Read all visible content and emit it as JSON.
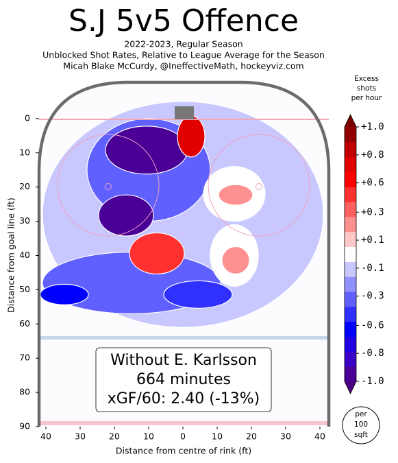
{
  "chart_data": {
    "type": "contour",
    "title": "S.J 5v5 Offence",
    "subtitle": [
      "2022-2023, Regular Season",
      "Unblocked Shot Rates, Relative to League Average for the Season",
      "Micah Blake McCurdy, @IneffectiveMath, hockeyviz.com"
    ],
    "xlabel": "Distance from centre of rink (ft)",
    "ylabel": "Distance from goal line (ft)",
    "xlim": [
      -43,
      43
    ],
    "ylim": [
      -11,
      90
    ],
    "xticks": [
      {
        "value": -40,
        "label": "40"
      },
      {
        "value": -30,
        "label": "30"
      },
      {
        "value": -20,
        "label": "20"
      },
      {
        "value": -10,
        "label": "10"
      },
      0,
      10,
      20,
      30,
      40
    ],
    "yticks": [
      0,
      10,
      20,
      30,
      40,
      50,
      60,
      70,
      80,
      90
    ],
    "regions": [
      {
        "x": 0,
        "y": 28,
        "rx": 41,
        "ry": 33,
        "value": -0.15
      },
      {
        "x": -10,
        "y": 15,
        "rx": 18,
        "ry": 15,
        "value": -0.35
      },
      {
        "x": -15,
        "y": 48,
        "rx": 26,
        "ry": 9,
        "value": -0.3
      },
      {
        "x": 15,
        "y": 22,
        "rx": 9,
        "ry": 8,
        "value": 0
      },
      {
        "x": 15,
        "y": 40,
        "rx": 7,
        "ry": 9,
        "value": 0
      },
      {
        "x": -10.6,
        "y": 9.2,
        "rx": 12,
        "ry": 7,
        "value": -0.9
      },
      {
        "x": -16.6,
        "y": 28.3,
        "rx": 8,
        "ry": 6,
        "value": -0.9
      },
      {
        "x": 2.4,
        "y": 5.2,
        "rx": 4,
        "ry": 6,
        "value": 0.7
      },
      {
        "x": -7.6,
        "y": 39.4,
        "rx": 8,
        "ry": 6,
        "value": 0.5
      },
      {
        "x": 15.4,
        "y": 22.3,
        "rx": 5,
        "ry": 3,
        "value": 0.2
      },
      {
        "x": 15.4,
        "y": 41.4,
        "rx": 4,
        "ry": 4,
        "value": 0.2
      },
      {
        "x": -34.6,
        "y": 51.4,
        "rx": 7,
        "ry": 3,
        "value": -0.6
      },
      {
        "x": 4.4,
        "y": 51.4,
        "rx": 10,
        "ry": 4,
        "value": -0.5
      }
    ],
    "colorbar": {
      "title": [
        "Excess",
        "shots",
        "per hour"
      ],
      "lim": [
        -1,
        1
      ],
      "colors": [
        "#4a0096",
        "#3a00c8",
        "#2000e0",
        "#0000ff",
        "#3030ff",
        "#6060ff",
        "#9090ff",
        "#c8c8ff",
        "#ffffff",
        "#ffc8c8",
        "#ff9090",
        "#ff6060",
        "#ff3030",
        "#ff0000",
        "#e00000",
        "#c00000",
        "#900000"
      ],
      "under": "#4b0082",
      "over": "#7a0000",
      "ticks": [
        {
          "value": 1,
          "label": "+1.0"
        },
        {
          "value": 0.78,
          "label": "+0.8"
        },
        {
          "value": 0.56,
          "label": "+0.6"
        },
        {
          "value": 0.33,
          "label": "+0.3"
        },
        {
          "value": 0.11,
          "label": "+0.1"
        },
        {
          "value": -0.11,
          "label": "-0.1"
        },
        {
          "value": -0.33,
          "label": "-0.3"
        },
        {
          "value": -0.56,
          "label": "-0.6"
        },
        {
          "value": -0.78,
          "label": "-0.8"
        },
        {
          "value": -1,
          "label": "-1.0"
        }
      ]
    },
    "annotation": [
      "Without E. Karlsson",
      "664 minutes",
      "xGF/60: 2.40 (-13%)"
    ],
    "scale_note": [
      "per",
      "100",
      "sqft"
    ]
  }
}
